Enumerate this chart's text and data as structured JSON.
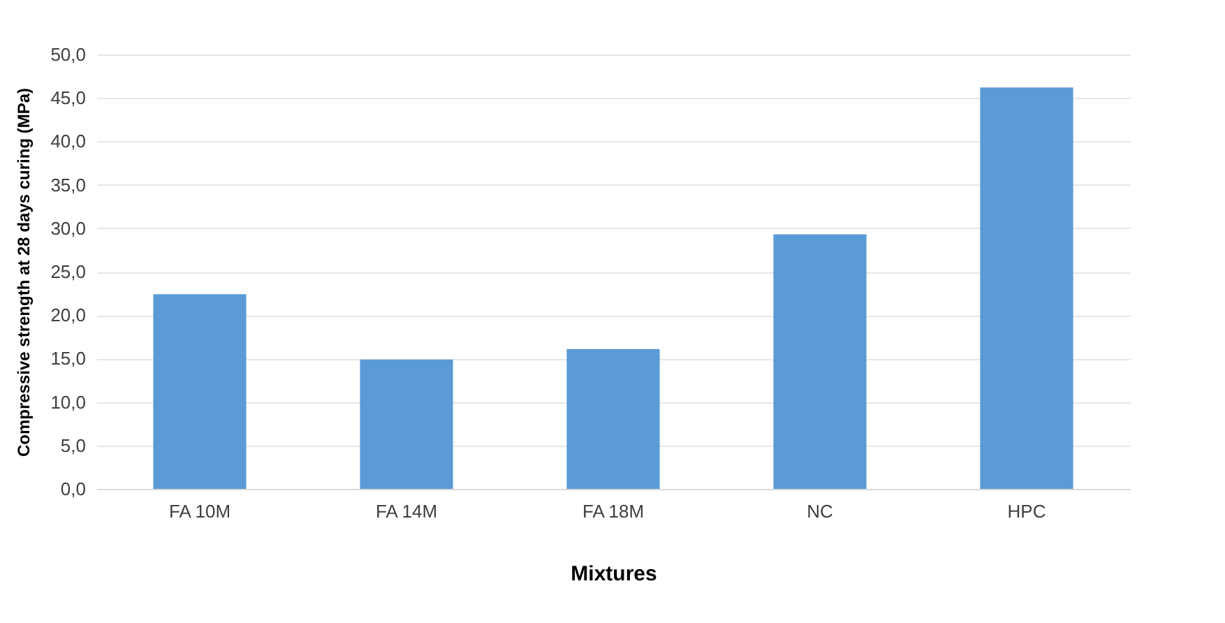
{
  "chart_data": {
    "type": "bar",
    "xlabel": "Mixtures",
    "ylabel": "Compressive strength at 28 days curing (MPa)",
    "categories": [
      "FA 10M",
      "FA 14M",
      "FA 18M",
      "NC",
      "HPC"
    ],
    "values": [
      22.4,
      14.9,
      16.1,
      29.3,
      46.2
    ],
    "color": "#5b9bd5",
    "ylim": [
      0,
      50
    ],
    "yticks": [
      {
        "value": 0,
        "label": "0,0"
      },
      {
        "value": 5,
        "label": "5,0"
      },
      {
        "value": 10,
        "label": "10,0"
      },
      {
        "value": 15,
        "label": "15,0"
      },
      {
        "value": 20,
        "label": "20,0"
      },
      {
        "value": 25,
        "label": "25,0"
      },
      {
        "value": 30,
        "label": "30,0"
      },
      {
        "value": 35,
        "label": "35,0"
      },
      {
        "value": 40,
        "label": "40,0"
      },
      {
        "value": 45,
        "label": "45,0"
      },
      {
        "value": 50,
        "label": "50,0"
      }
    ],
    "grid": "y"
  }
}
